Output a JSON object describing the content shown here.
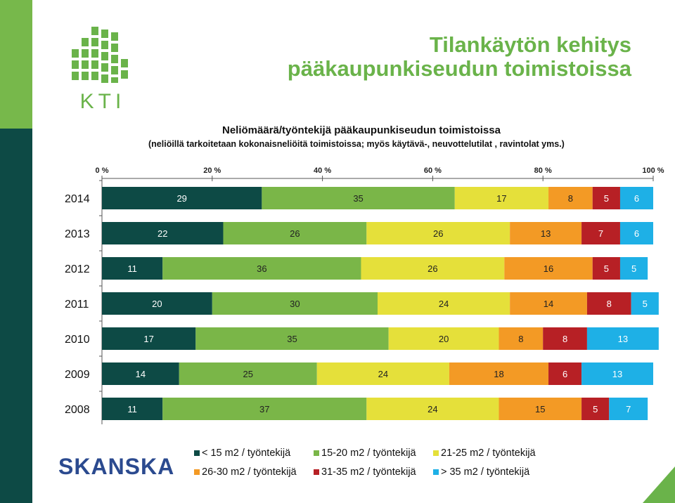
{
  "header": {
    "title_line1": "Tilankäytön kehitys",
    "title_line2": "pääkaupunkiseudun toimistoissa",
    "logo_text": "KTI"
  },
  "footer": {
    "brand": "SKANSKA"
  },
  "colors": {
    "accent_green": "#6ab34a",
    "dark_teal": "#0d4a45",
    "light_green_stripe": "#77b84b"
  },
  "chart_data": {
    "type": "bar",
    "orientation": "horizontal",
    "stacked": "percent",
    "title": "Neliömäärä/työntekijä pääkaupunkiseudun toimistoissa",
    "subtitle": "(neliöillä tarkoitetaan kokonaisneliöitä toimistoissa; myös käytävä-, neuvottelutilat , ravintolat yms.)",
    "categories": [
      "2014",
      "2013",
      "2012",
      "2011",
      "2010",
      "2009",
      "2008"
    ],
    "xlim": [
      0,
      100
    ],
    "x_ticks": [
      "0 %",
      "20 %",
      "40 %",
      "60 %",
      "80 %",
      "100 %"
    ],
    "legend_position": "bottom",
    "series": [
      {
        "name": "< 15 m2 / työntekijä",
        "color": "#0d4a45",
        "values": [
          29,
          22,
          11,
          20,
          17,
          14,
          11
        ]
      },
      {
        "name": "15-20 m2 / työntekijä",
        "color": "#7ab648",
        "values": [
          35,
          26,
          36,
          30,
          35,
          25,
          37
        ]
      },
      {
        "name": "21-25 m2 / työntekijä",
        "color": "#e5e03a",
        "values": [
          17,
          26,
          26,
          24,
          20,
          24,
          24
        ]
      },
      {
        "name": "26-30 m2 / työntekijä",
        "color": "#f39a25",
        "values": [
          8,
          13,
          16,
          14,
          8,
          18,
          15
        ]
      },
      {
        "name": "31-35 m2 / työntekijä",
        "color": "#b72025",
        "values": [
          5,
          7,
          5,
          8,
          8,
          6,
          5
        ]
      },
      {
        "name": "> 35 m2 / työntekijä",
        "color": "#1eb0e6",
        "values": [
          6,
          6,
          5,
          5,
          13,
          13,
          7
        ]
      }
    ]
  }
}
